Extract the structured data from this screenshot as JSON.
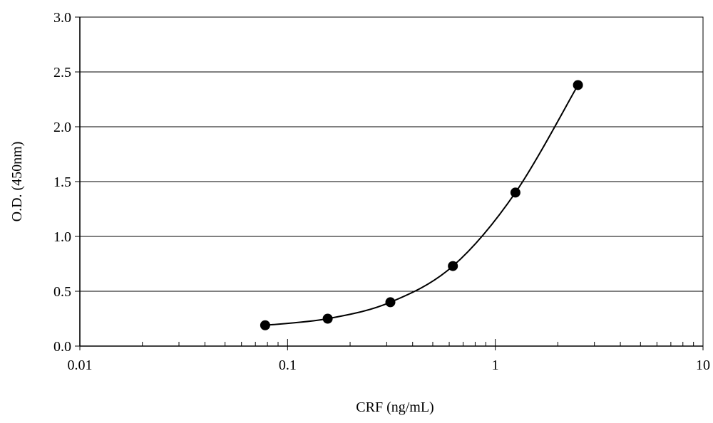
{
  "chart_data": {
    "type": "scatter",
    "title": "",
    "xlabel": "CRF  (ng/mL)",
    "ylabel": "O.D. (450nm)",
    "x_scale": "log",
    "xlim": [
      0.01,
      10
    ],
    "ylim": [
      0,
      3.0
    ],
    "x_tick_labels": [
      {
        "value": 0.01,
        "label": "0.01"
      },
      {
        "value": 0.1,
        "label": "0.1"
      },
      {
        "value": 1,
        "label": "1"
      },
      {
        "value": 10,
        "label": "10"
      }
    ],
    "y_tick_labels": [
      {
        "value": 0,
        "label": "0.0"
      },
      {
        "value": 0.5,
        "label": "0.5"
      },
      {
        "value": 1.0,
        "label": "1.0"
      },
      {
        "value": 1.5,
        "label": "1.5"
      },
      {
        "value": 2.0,
        "label": "2.0"
      },
      {
        "value": 2.5,
        "label": "2.5"
      },
      {
        "value": 3.0,
        "label": "3.0"
      }
    ],
    "grid": "horizontal",
    "legend": "none",
    "series": [
      {
        "marker": "filled-circle",
        "smooth_line": true,
        "color": "#000000",
        "x": [
          0.078,
          0.156,
          0.3125,
          0.625,
          1.25,
          2.5
        ],
        "y": [
          0.19,
          0.25,
          0.4,
          0.73,
          1.4,
          2.38
        ]
      }
    ]
  }
}
